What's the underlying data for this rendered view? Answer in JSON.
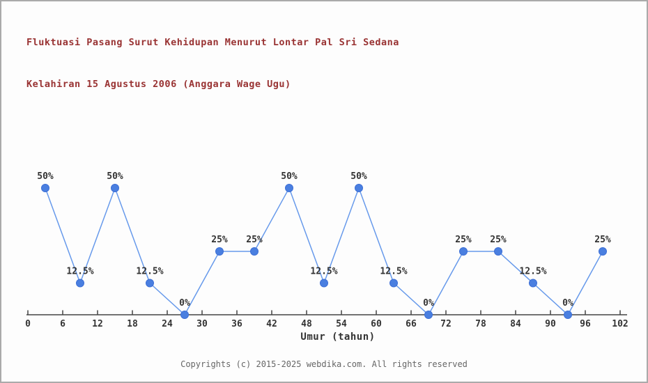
{
  "header": {
    "title_line1": "Fluktuasi Pasang Surut Kehidupan Menurut Lontar Pal Sri Sedana",
    "title_line2": "Kelahiran 15 Agustus 2006 (Anggara Wage Ugu)",
    "title_color": "#993333"
  },
  "chart_data": {
    "type": "line",
    "title": "Fluktuasi Pasang Surut Kehidupan Menurut Lontar Pal Sri Sedana Kelahiran 15 Agustus 2006 (Anggara Wage Ugu)",
    "x": [
      3,
      9,
      15,
      21,
      27,
      33,
      39,
      45,
      51,
      57,
      63,
      69,
      75,
      81,
      87,
      93,
      99
    ],
    "values": [
      50,
      12.5,
      50,
      12.5,
      0,
      25,
      25,
      50,
      12.5,
      50,
      12.5,
      0,
      25,
      25,
      12.5,
      0,
      25
    ],
    "point_labels": [
      "50%",
      "12.5%",
      "50%",
      "12.5%",
      "0%",
      "25%",
      "25%",
      "50%",
      "12.5%",
      "50%",
      "12.5%",
      "0%",
      "25%",
      "25%",
      "12.5%",
      "0%",
      "25%"
    ],
    "x_ticks": [
      0,
      6,
      12,
      18,
      24,
      30,
      36,
      42,
      48,
      54,
      60,
      66,
      72,
      78,
      84,
      90,
      96,
      102
    ],
    "xlabel": "Umur (tahun)",
    "xlim": [
      0,
      102
    ],
    "ylim": [
      0,
      55
    ],
    "grid": false,
    "legend": "none",
    "line_color": "#6699eb",
    "marker_color": "#4a7fe0",
    "marker_stroke_color": "#3d6fd6",
    "axis_color": "#444444",
    "label_color": "#333333"
  },
  "footer": {
    "copyright": "Copyrights (c) 2015-2025 webdika.com. All rights reserved"
  }
}
